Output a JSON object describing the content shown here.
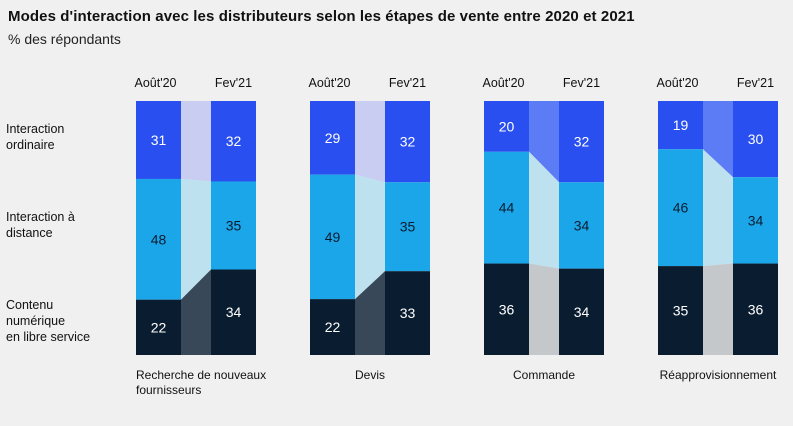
{
  "title": "Modes d'interaction avec les distributeurs selon les étapes de vente entre 2020 et 2021",
  "subtitle": "% des répondants",
  "row_labels": {
    "ordinaire": [
      "Interaction",
      "ordinaire"
    ],
    "distance": [
      "Interaction à",
      "distance"
    ],
    "contenu": [
      "Contenu",
      "numérique",
      "en libre service"
    ]
  },
  "colors": {
    "ordinaire": "#2a4ff0",
    "distance": "#1ba6ea",
    "contenu": "#0a1d30",
    "connector_ordinaire_up": "#5b7cf5",
    "connector_ordinaire_down": "#c9cdf2",
    "connector_distance": "#bde1ef",
    "connector_contenu_up": "#394858",
    "connector_contenu_flat": "#c4c8cb"
  },
  "chart_data": {
    "type": "bar",
    "subtype": "stacked-100-paired",
    "title": "Modes d'interaction avec les distributeurs selon les étapes de vente entre 2020 et 2021",
    "ylabel": "% des répondants",
    "period_labels": [
      "Août'20",
      "Fev'21"
    ],
    "series_order": [
      "ordinaire",
      "distance",
      "contenu"
    ],
    "groups": [
      {
        "name": [
          "Recherche de nouveaux",
          "fournisseurs"
        ],
        "periods": [
          {
            "ordinaire": 31,
            "distance": 48,
            "contenu": 22
          },
          {
            "ordinaire": 32,
            "distance": 35,
            "contenu": 34
          }
        ]
      },
      {
        "name": [
          "Devis"
        ],
        "periods": [
          {
            "ordinaire": 29,
            "distance": 49,
            "contenu": 22
          },
          {
            "ordinaire": 32,
            "distance": 35,
            "contenu": 33
          }
        ]
      },
      {
        "name": [
          "Commande"
        ],
        "periods": [
          {
            "ordinaire": 20,
            "distance": 44,
            "contenu": 36
          },
          {
            "ordinaire": 32,
            "distance": 34,
            "contenu": 34
          }
        ]
      },
      {
        "name": [
          "Réapprovisionnement"
        ],
        "periods": [
          {
            "ordinaire": 19,
            "distance": 46,
            "contenu": 35
          },
          {
            "ordinaire": 30,
            "distance": 34,
            "contenu": 36
          }
        ]
      }
    ]
  }
}
